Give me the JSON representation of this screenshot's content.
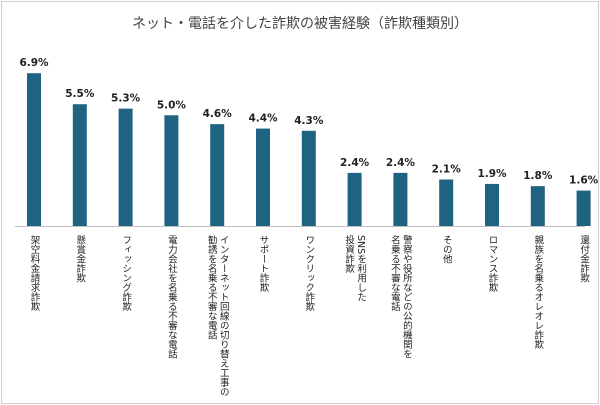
{
  "chart_data": {
    "type": "bar",
    "title": "ネット・電話を介した詐欺の被害経験（詐欺種類別）",
    "categories": [
      [
        "架空料金請求詐欺"
      ],
      [
        "懸賞金詐欺"
      ],
      [
        "フィッシング詐欺"
      ],
      [
        "電力会社を名乗る不審な電話"
      ],
      [
        "インターネット回線の切り替え工事の",
        "勧誘を名乗る不審な電話"
      ],
      [
        "サポート詐欺"
      ],
      [
        "ワンクリック詐欺"
      ],
      [
        "SNSを利用した",
        "投資詐欺"
      ],
      [
        "警察や役所などの公的機関を",
        "名乗る不審な電話"
      ],
      [
        "その他"
      ],
      [
        "ロマンス詐欺"
      ],
      [
        "親族を名乗るオレオレ詐欺"
      ],
      [
        "還付金詐欺"
      ]
    ],
    "values": [
      6.9,
      5.5,
      5.3,
      5.0,
      4.6,
      4.4,
      4.3,
      2.4,
      2.4,
      2.1,
      1.9,
      1.8,
      1.6
    ],
    "value_labels": [
      "6.9%",
      "5.5%",
      "5.3%",
      "5.0%",
      "4.6%",
      "4.4%",
      "4.3%",
      "2.4%",
      "2.4%",
      "2.1%",
      "1.9%",
      "1.8%",
      "1.6%"
    ],
    "unit": "%",
    "ylim": [
      0,
      7
    ],
    "grid": false,
    "legend": "none",
    "bar_color": "#1f6382",
    "axis_color": "#bfbfbf"
  }
}
